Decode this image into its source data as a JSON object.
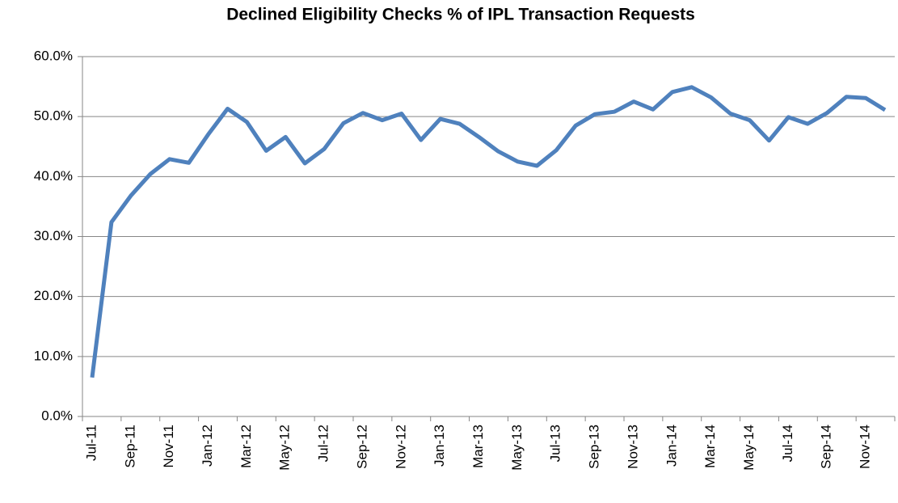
{
  "chart_data": {
    "type": "line",
    "title": "Declined Eligibility Checks % of IPL Transaction Requests",
    "categories": [
      "Jul-11",
      null,
      "Sep-11",
      null,
      "Nov-11",
      null,
      "Jan-12",
      null,
      "Mar-12",
      null,
      "May-12",
      null,
      "Jul-12",
      null,
      "Sep-12",
      null,
      "Nov-12",
      null,
      "Jan-13",
      null,
      "Mar-13",
      null,
      "May-13",
      null,
      "Jul-13",
      null,
      "Sep-13",
      null,
      "Nov-13",
      null,
      "Jan-14",
      null,
      "Mar-14",
      null,
      "May-14",
      null,
      "Jul-14",
      null,
      "Sep-14",
      null,
      "Nov-14",
      null
    ],
    "values": [
      6.5,
      32.4,
      36.8,
      40.4,
      42.9,
      42.3,
      47.0,
      51.3,
      49.1,
      44.3,
      46.6,
      42.2,
      44.6,
      48.9,
      50.6,
      49.4,
      50.5,
      46.1,
      49.6,
      48.8,
      46.6,
      44.2,
      42.5,
      41.8,
      44.4,
      48.5,
      50.4,
      50.8,
      52.5,
      51.2,
      54.1,
      54.9,
      53.2,
      50.5,
      49.4,
      46.0,
      49.9,
      48.8,
      50.6,
      53.3,
      53.1,
      51.1
    ],
    "color": "#4f81bd",
    "ylim": [
      0,
      60
    ],
    "yticks": [
      {
        "value": 0,
        "label": "0.0%"
      },
      {
        "value": 10,
        "label": "10.0%"
      },
      {
        "value": 20,
        "label": "20.0%"
      },
      {
        "value": 30,
        "label": "30.0%"
      },
      {
        "value": 40,
        "label": "40.0%"
      },
      {
        "value": 50,
        "label": "50.0%"
      },
      {
        "value": 60,
        "label": "60.0%"
      }
    ],
    "grid": true
  }
}
